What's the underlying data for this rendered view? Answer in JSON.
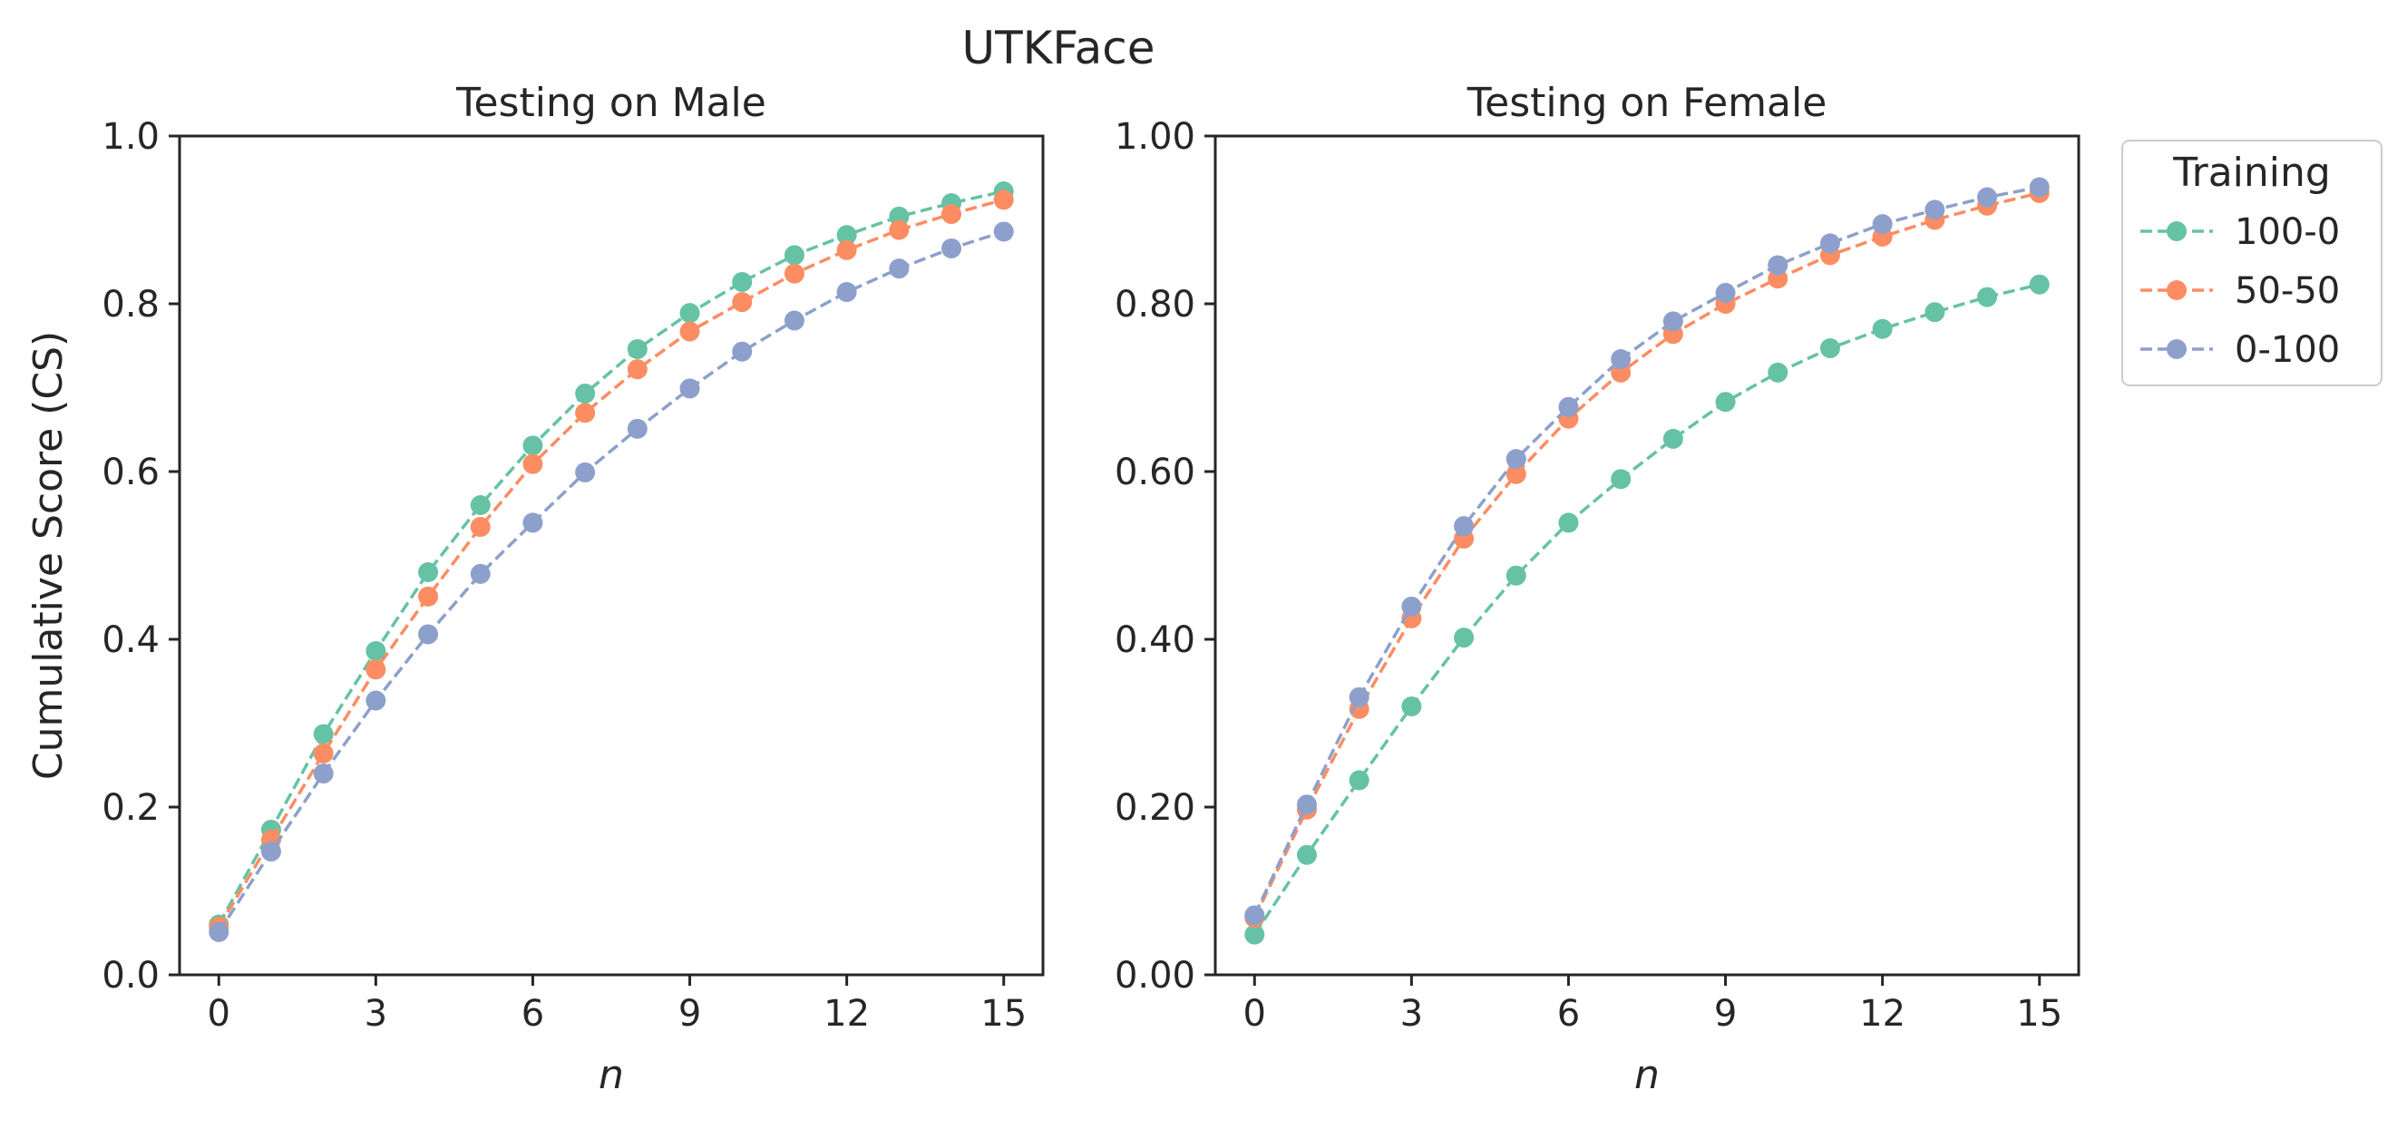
{
  "figure": {
    "suptitle": "UTKFace"
  },
  "legend": {
    "title": "Training",
    "entries": [
      "100-0",
      "50-50",
      "0-100"
    ],
    "placement": "upper-right-outside"
  },
  "colors": {
    "100-0": "#66c2a5",
    "50-50": "#fc8d62",
    "0-100": "#8da0cb",
    "axis": "#262626"
  },
  "chart_data": [
    {
      "type": "line",
      "title": "Testing on Male",
      "xlabel": "n",
      "ylabel": "Cumulative Score (CS)",
      "xlim": [
        -0.75,
        15.75
      ],
      "ylim": [
        0,
        1
      ],
      "xticks": [
        0,
        3,
        6,
        9,
        12,
        15
      ],
      "xtick_labels": [
        "0",
        "3",
        "6",
        "9",
        "12",
        "15"
      ],
      "yticks": [
        0,
        0.2,
        0.4,
        0.6,
        0.8,
        1.0
      ],
      "ytick_labels": [
        "0.0",
        "0.2",
        "0.4",
        "0.6",
        "0.8",
        "1.0"
      ],
      "grid": false,
      "x": [
        0,
        1,
        2,
        3,
        4,
        5,
        6,
        7,
        8,
        9,
        10,
        11,
        12,
        13,
        14,
        15
      ],
      "series": [
        {
          "name": "100-0",
          "values": [
            0.06,
            0.173,
            0.287,
            0.386,
            0.48,
            0.56,
            0.631,
            0.693,
            0.746,
            0.789,
            0.826,
            0.858,
            0.882,
            0.904,
            0.92,
            0.934
          ]
        },
        {
          "name": "50-50",
          "values": [
            0.057,
            0.161,
            0.264,
            0.364,
            0.451,
            0.534,
            0.609,
            0.67,
            0.722,
            0.767,
            0.802,
            0.836,
            0.864,
            0.888,
            0.907,
            0.924
          ]
        },
        {
          "name": "0-100",
          "values": [
            0.051,
            0.147,
            0.24,
            0.327,
            0.406,
            0.478,
            0.539,
            0.599,
            0.651,
            0.699,
            0.743,
            0.78,
            0.814,
            0.842,
            0.866,
            0.886
          ]
        }
      ]
    },
    {
      "type": "line",
      "title": "Testing on Female",
      "xlabel": "n",
      "ylabel": "",
      "xlim": [
        -0.75,
        15.75
      ],
      "ylim": [
        0,
        1
      ],
      "xticks": [
        0,
        3,
        6,
        9,
        12,
        15
      ],
      "xtick_labels": [
        "0",
        "3",
        "6",
        "9",
        "12",
        "15"
      ],
      "yticks": [
        0,
        0.2,
        0.4,
        0.6,
        0.8,
        1.0
      ],
      "ytick_labels": [
        "0.00",
        "0.20",
        "0.40",
        "0.60",
        "0.80",
        "1.00"
      ],
      "grid": false,
      "x": [
        0,
        1,
        2,
        3,
        4,
        5,
        6,
        7,
        8,
        9,
        10,
        11,
        12,
        13,
        14,
        15
      ],
      "series": [
        {
          "name": "100-0",
          "values": [
            0.048,
            0.143,
            0.232,
            0.32,
            0.402,
            0.476,
            0.539,
            0.591,
            0.639,
            0.683,
            0.718,
            0.747,
            0.77,
            0.79,
            0.808,
            0.823
          ]
        },
        {
          "name": "50-50",
          "values": [
            0.068,
            0.197,
            0.317,
            0.425,
            0.52,
            0.597,
            0.663,
            0.718,
            0.764,
            0.8,
            0.83,
            0.858,
            0.88,
            0.9,
            0.917,
            0.932
          ]
        },
        {
          "name": "0-100",
          "values": [
            0.071,
            0.203,
            0.331,
            0.439,
            0.535,
            0.615,
            0.677,
            0.734,
            0.779,
            0.813,
            0.846,
            0.872,
            0.895,
            0.912,
            0.927,
            0.939
          ]
        }
      ]
    }
  ]
}
